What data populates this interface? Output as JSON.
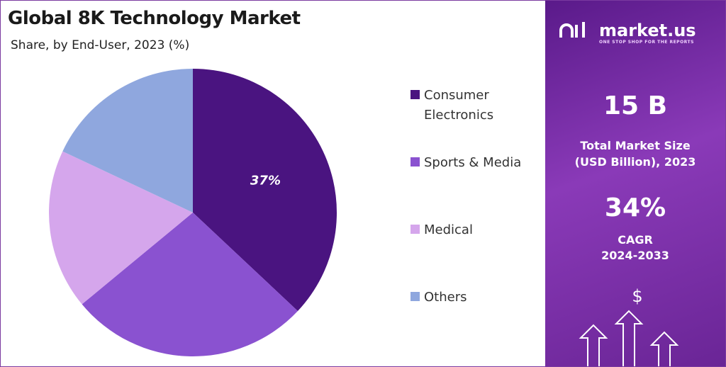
{
  "chart_data": {
    "type": "pie",
    "title": "Global 8K Technology Market",
    "subtitle": "Share, by End-User, 2023 (%)",
    "series": [
      {
        "name": "Consumer Electronics",
        "color": "#4a1480",
        "values": [
          37
        ]
      },
      {
        "name": "Sports & Media",
        "color": "#8a52d0",
        "values": [
          27
        ]
      },
      {
        "name": "Medical",
        "color": "#d5a6ec",
        "values": [
          18
        ]
      },
      {
        "name": "Others",
        "color": "#8fa7de",
        "values": [
          18
        ]
      }
    ],
    "value_labels": [
      "37%",
      null,
      null,
      null
    ],
    "legend": "right"
  },
  "panel": {
    "brand": "market.us",
    "tagline": "ONE STOP SHOP FOR THE REPORTS",
    "market_size": "15 B",
    "market_size_label": "Total Market Size (USD Billion), 2023",
    "cagr": "34%",
    "cagr_label": "CAGR",
    "cagr_period": "2024-2033"
  }
}
